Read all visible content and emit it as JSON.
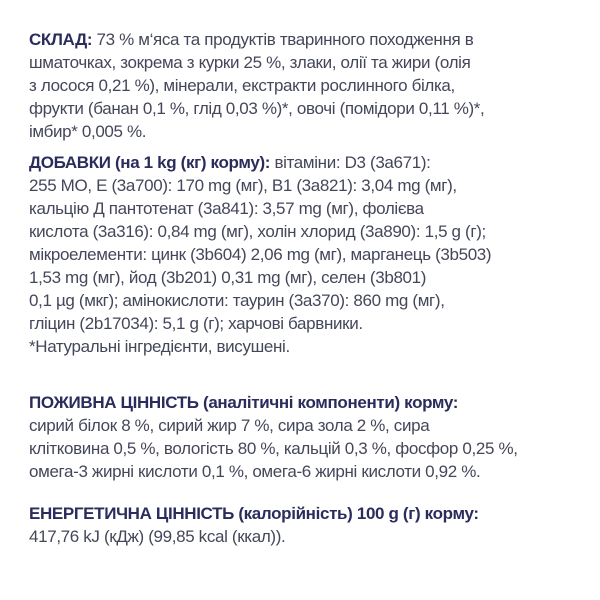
{
  "colors": {
    "heading": "#2a2d5c",
    "text": "#44475a"
  },
  "sections": [
    {
      "heading": "СКЛАД:",
      "lines": [
        " 73 % м‘яса та продуктів тваринного походження в",
        "шматочках, зокрема з курки 25 %, злаки, олії та жири (олія",
        "з лосося 0,21 %), мінерали, екстракти рослинного білка,",
        "фрукти (банан 0,1 %, глід 0,03 %)*, овочі (помідори 0,11 %)*,",
        "імбир* 0,005 %."
      ]
    },
    {
      "heading": "ДОБАВКИ (на 1 kg (кг) корму):",
      "lines": [
        " вітаміни: D3 (3a671):",
        "255 МО, E (3a700): 170 mg (мг), B1 (3a821): 3,04 mg (мг),",
        "кальцію Д пантотенат (3a841): 3,57 mg (мг), фолієва",
        "кислота (3a316): 0,84 mg (мг), холін хлорид (3a890): 1,5 g (г);",
        "мікроелементи: цинк (3b604) 2,06 mg (мг), марганець (3b503)",
        "1,53 mg (мг), йод (3b201) 0,31 mg (мг), селен (3b801)",
        "0,1 µg (мкг); амінокислоти: таурин (3a370): 860 mg (мг),",
        "гліцин (2b17034): 5,1 g (г); харчові барвники.",
        "*Натуральні інгредієнти, висушені."
      ]
    },
    {
      "heading": "ПОЖИВНА ЦІННІСТЬ (аналітичні компоненти) корму:",
      "lines": [
        "",
        "сирий білок 8 %, сирий жир 7 %, сира зола 2 %, сира",
        "клітковина 0,5 %, вологість 80 %, кальцій 0,3 %, фосфор 0,25 %,",
        "омега-3 жирні кислоти 0,1 %, омега-6 жирні кислоти 0,92 %."
      ]
    },
    {
      "heading": "ЕНЕРГЕТИЧНА ЦІННІСТЬ (калорійність) 100 g (г) корму:",
      "lines": [
        "",
        "417,76 kJ (кДж) (99,85 kcal (ккал))."
      ]
    }
  ]
}
